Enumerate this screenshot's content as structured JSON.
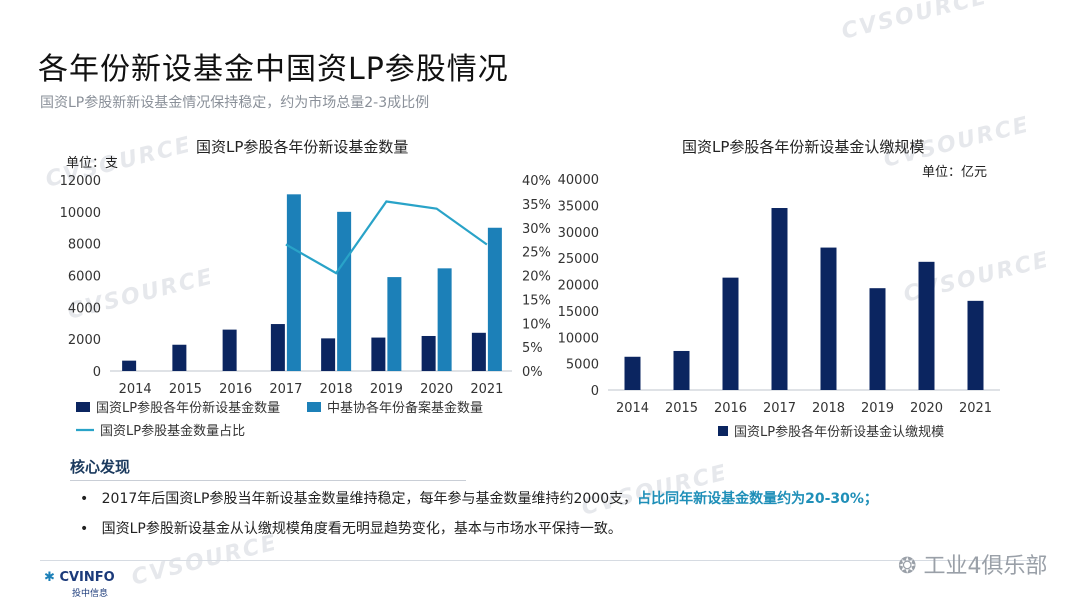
{
  "page": {
    "title": "各年份新设基金中国资LP参股情况",
    "subtitle": "国资LP参股新新设基金情况保持稳定，约为市场总量2-3成比例",
    "watermark": "CVSOURCE"
  },
  "colors": {
    "navy": "#0b2560",
    "blue": "#1c80b8",
    "line": "#29a3c8",
    "highlight": "#1f8fb8"
  },
  "chart_data": [
    {
      "type": "bar",
      "title": "国资LP参股各年份新设基金数量",
      "unit": "单位：支",
      "categories": [
        "2014",
        "2015",
        "2016",
        "2017",
        "2018",
        "2019",
        "2020",
        "2021"
      ],
      "ylim": [
        0,
        12000
      ],
      "yticks": [
        "12000",
        "10000",
        "8000",
        "6000",
        "4000",
        "2000",
        "0"
      ],
      "y2lim": [
        0,
        40
      ],
      "y2ticks": [
        "40%",
        "35%",
        "30%",
        "25%",
        "20%",
        "15%",
        "10%",
        "5%",
        "0%"
      ],
      "series": [
        {
          "name": "国资LP参股各年份新设基金数量",
          "kind": "bar",
          "color": "#0b2560",
          "values": [
            650,
            1650,
            2600,
            2950,
            2050,
            2100,
            2200,
            2400
          ]
        },
        {
          "name": "中基协各年份备案基金数量",
          "kind": "bar",
          "color": "#1c80b8",
          "values": [
            null,
            null,
            null,
            11100,
            10000,
            5900,
            6450,
            9000
          ]
        },
        {
          "name": "国资LP参股基金数量占比",
          "kind": "line",
          "axis": "y2",
          "color": "#29a3c8",
          "values": [
            null,
            null,
            null,
            26.5,
            20.5,
            35.5,
            34,
            26.5
          ]
        }
      ]
    },
    {
      "type": "bar",
      "title": "国资LP参股各年份新设基金认缴规模",
      "unit": "单位：亿元",
      "categories": [
        "2014",
        "2015",
        "2016",
        "2017",
        "2018",
        "2019",
        "2020",
        "2021"
      ],
      "ylim": [
        0,
        40000
      ],
      "yticks": [
        "40000",
        "35000",
        "30000",
        "25000",
        "20000",
        "15000",
        "10000",
        "5000",
        "0"
      ],
      "series": [
        {
          "name": "国资LP参股各年份新设基金认缴规模",
          "kind": "bar",
          "color": "#0b2560",
          "values": [
            6300,
            7400,
            21300,
            34500,
            27000,
            19300,
            24300,
            16900
          ]
        }
      ]
    }
  ],
  "findings": {
    "title": "核心发现",
    "bullet_mark": "•",
    "bullet1_text": "2017年后国资LP参股当年新设基金数量维持稳定，每年参与基金数量维持约2000支，",
    "bullet1_highlight": "占比同年新设基金数量约为20-30%；",
    "bullet2_text": "国资LP参股新设基金从认缴规模角度看无明显趋势变化，基本与市场水平保持一致。"
  },
  "footer": {
    "logo": "CVINFO",
    "logo_sub": "投中信息",
    "wechat": "工业4俱乐部"
  }
}
